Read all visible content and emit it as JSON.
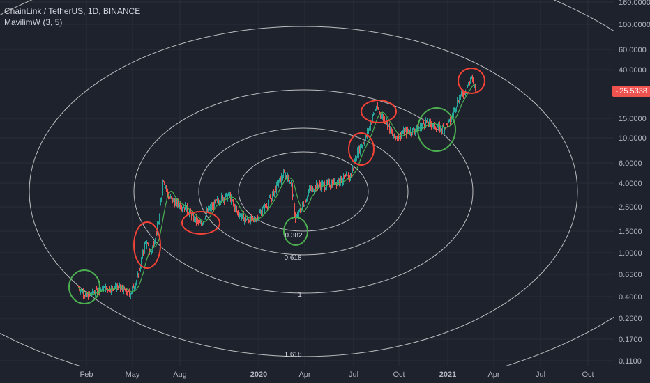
{
  "legend": {
    "symbol": "ChainLink / TetherUS, 1D, BINANCE",
    "indicator": "MavilimW (3, 5)"
  },
  "price_tag": "25.5338",
  "colors": {
    "background": "#1e222d",
    "grid": "#2a2e39",
    "up_candle": "#26a69a",
    "down_candle": "#ef5350",
    "ma_line": "#4caf50",
    "ellipse": "#d9d9d9",
    "circle_red": "#f44336",
    "circle_green": "#4caf50"
  },
  "chart_data": {
    "type": "candlestick",
    "y_scale": "log",
    "y_ticks": [
      "160.0000",
      "100.0000",
      "60.0000",
      "40.0000",
      "15.0000",
      "10.0000",
      "6.0000",
      "4.0000",
      "2.5000",
      "1.5000",
      "1.0000",
      "0.6500",
      "0.4000",
      "0.2600",
      "0.1700",
      "0.1100"
    ],
    "x_ticks": [
      {
        "label": "Feb",
        "bold": false
      },
      {
        "label": "May",
        "bold": false
      },
      {
        "label": "Aug",
        "bold": false
      },
      {
        "label": "2020",
        "bold": true
      },
      {
        "label": "Apr",
        "bold": false
      },
      {
        "label": "Jul",
        "bold": false
      },
      {
        "label": "Oct",
        "bold": false
      },
      {
        "label": "2021",
        "bold": true
      },
      {
        "label": "Apr",
        "bold": false
      },
      {
        "label": "Jul",
        "bold": false
      },
      {
        "label": "Oct",
        "bold": false
      }
    ],
    "fib_labels": [
      "0.382",
      "0.618",
      "1",
      "1.618"
    ],
    "last_price": 25.5338,
    "price_path": [
      [
        "2019-01-15",
        0.5
      ],
      [
        "2019-02-01",
        0.4
      ],
      [
        "2019-02-20",
        0.46
      ],
      [
        "2019-03-15",
        0.48
      ],
      [
        "2019-04-01",
        0.5
      ],
      [
        "2019-04-25",
        0.42
      ],
      [
        "2019-05-10",
        0.6
      ],
      [
        "2019-05-25",
        1.2
      ],
      [
        "2019-06-05",
        1.0
      ],
      [
        "2019-06-20",
        1.8
      ],
      [
        "2019-06-29",
        4.5
      ],
      [
        "2019-07-10",
        3.0
      ],
      [
        "2019-07-25",
        2.7
      ],
      [
        "2019-08-10",
        2.5
      ],
      [
        "2019-08-25",
        2.0
      ],
      [
        "2019-09-10",
        1.7
      ],
      [
        "2019-09-20",
        2.2
      ],
      [
        "2019-10-05",
        2.6
      ],
      [
        "2019-10-20",
        3.0
      ],
      [
        "2019-11-05",
        3.1
      ],
      [
        "2019-11-20",
        2.2
      ],
      [
        "2019-12-05",
        1.95
      ],
      [
        "2019-12-20",
        1.85
      ],
      [
        "2020-01-10",
        2.4
      ],
      [
        "2020-01-25",
        3.0
      ],
      [
        "2020-02-10",
        4.2
      ],
      [
        "2020-02-20",
        4.8
      ],
      [
        "2020-03-05",
        4.0
      ],
      [
        "2020-03-13",
        1.9
      ],
      [
        "2020-03-20",
        2.2
      ],
      [
        "2020-04-10",
        3.5
      ],
      [
        "2020-04-25",
        3.9
      ],
      [
        "2020-05-10",
        3.8
      ],
      [
        "2020-05-25",
        4.1
      ],
      [
        "2020-06-10",
        4.3
      ],
      [
        "2020-06-25",
        4.6
      ],
      [
        "2020-07-05",
        7.0
      ],
      [
        "2020-07-15",
        8.5
      ],
      [
        "2020-07-25",
        10.0
      ],
      [
        "2020-08-05",
        14.0
      ],
      [
        "2020-08-15",
        19.0
      ],
      [
        "2020-08-25",
        16.0
      ],
      [
        "2020-09-05",
        14.0
      ],
      [
        "2020-09-20",
        10.0
      ],
      [
        "2020-10-05",
        11.0
      ],
      [
        "2020-10-20",
        11.5
      ],
      [
        "2020-11-05",
        12.0
      ],
      [
        "2020-11-20",
        14.0
      ],
      [
        "2020-12-05",
        13.0
      ],
      [
        "2020-12-20",
        12.0
      ],
      [
        "2021-01-05",
        14.0
      ],
      [
        "2021-01-20",
        22.0
      ],
      [
        "2021-02-05",
        27.0
      ],
      [
        "2021-02-15",
        34.0
      ],
      [
        "2021-02-25",
        26.0
      ]
    ]
  }
}
